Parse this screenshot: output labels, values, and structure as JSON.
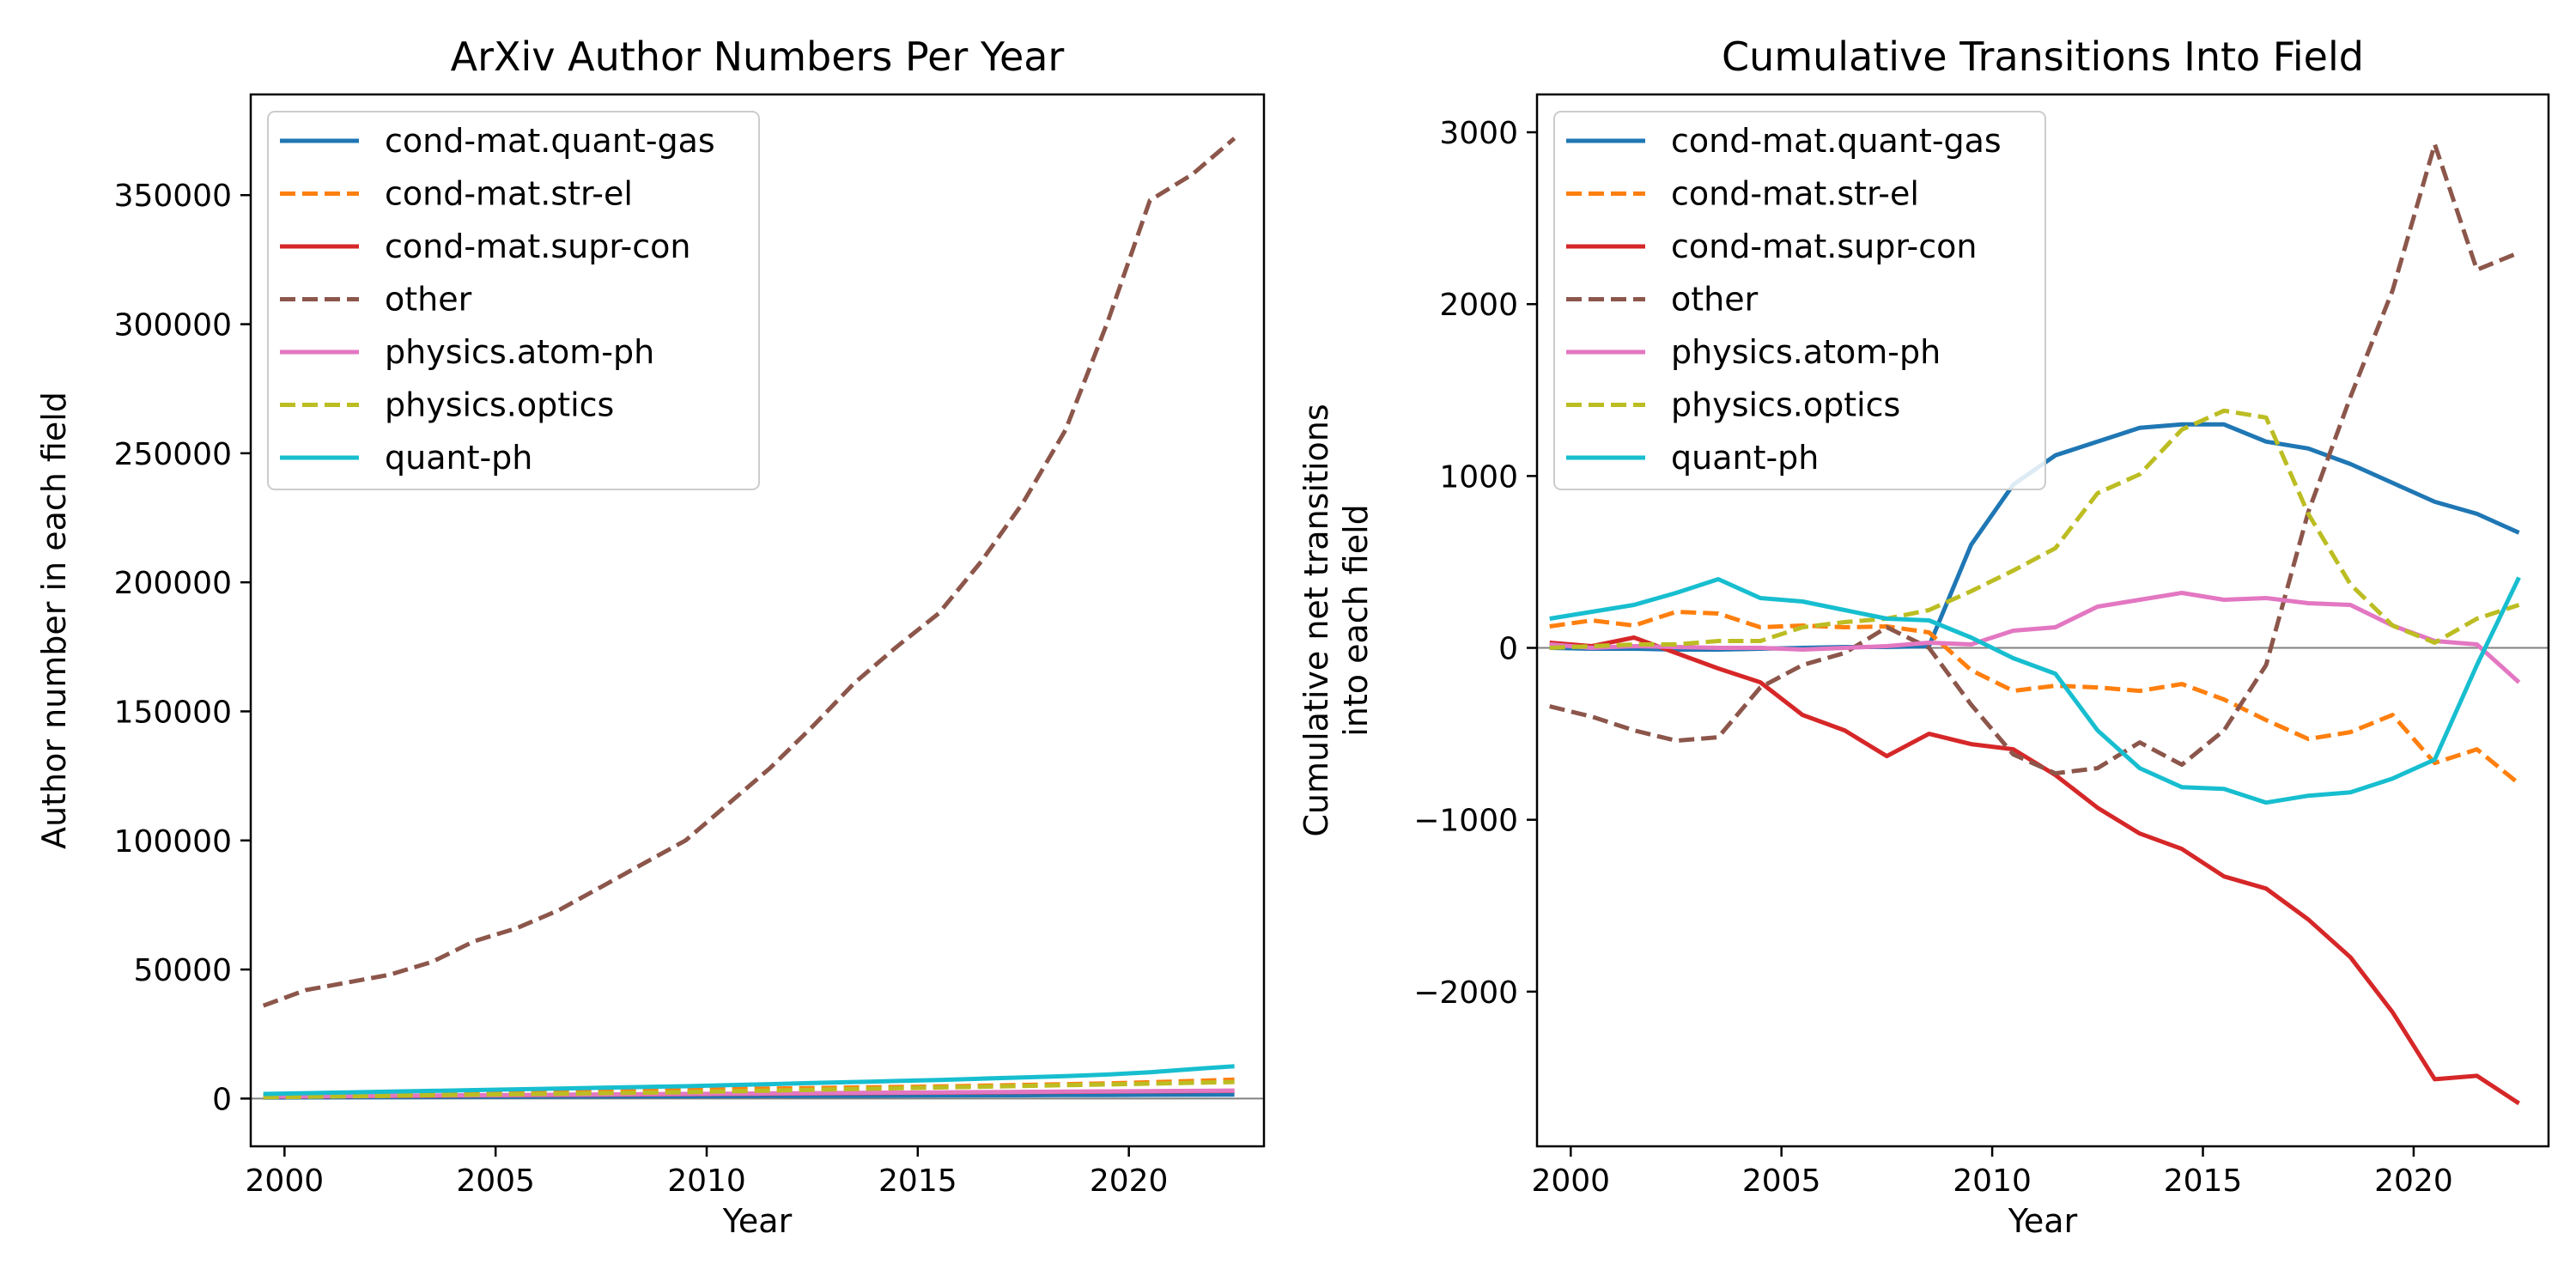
{
  "figure": {
    "background": "#ffffff"
  },
  "legend_entries": [
    {
      "name": "cond-mat.quant-gas",
      "color": "#1f77b4",
      "dash": "solid"
    },
    {
      "name": "cond-mat.str-el",
      "color": "#ff7f0e",
      "dash": "dashed"
    },
    {
      "name": "cond-mat.supr-con",
      "color": "#d62728",
      "dash": "solid"
    },
    {
      "name": "other",
      "color": "#8c564b",
      "dash": "dashed"
    },
    {
      "name": "physics.atom-ph",
      "color": "#e377c2",
      "dash": "solid"
    },
    {
      "name": "physics.optics",
      "color": "#bcbd22",
      "dash": "dashed"
    },
    {
      "name": "quant-ph",
      "color": "#17becf",
      "dash": "solid"
    }
  ],
  "chart_data": [
    {
      "type": "line",
      "title": "ArXiv Author Numbers Per Year",
      "xlabel": "Year",
      "ylabel": "Author number in each field",
      "xlim": [
        1999.2,
        2023.2
      ],
      "ylim": [
        -18500,
        389000
      ],
      "xticks": [
        2000,
        2005,
        2010,
        2015,
        2020
      ],
      "yticks": [
        0,
        50000,
        100000,
        150000,
        200000,
        250000,
        300000,
        350000
      ],
      "xtick_labels": [
        "2000",
        "2005",
        "2010",
        "2015",
        "2020"
      ],
      "ytick_labels": [
        "0",
        "50000",
        "100000",
        "150000",
        "200000",
        "250000",
        "300000",
        "350000"
      ],
      "zero_line": true,
      "legend": "top-left",
      "grid": false,
      "x": [
        1999.5,
        2000.5,
        2001.5,
        2002.5,
        2003.5,
        2004.5,
        2005.5,
        2006.5,
        2007.5,
        2008.5,
        2009.5,
        2010.5,
        2011.5,
        2012.5,
        2013.5,
        2014.5,
        2015.5,
        2016.5,
        2017.5,
        2018.5,
        2019.5,
        2020.5,
        2021.5,
        2022.5
      ],
      "series": [
        {
          "name": "cond-mat.quant-gas",
          "values": [
            400,
            450,
            500,
            550,
            600,
            650,
            700,
            750,
            800,
            850,
            900,
            950,
            1000,
            1050,
            1100,
            1150,
            1200,
            1250,
            1300,
            1350,
            1400,
            1450,
            1500,
            1550
          ]
        },
        {
          "name": "cond-mat.str-el",
          "values": [
            1500,
            1700,
            1900,
            2100,
            2300,
            2500,
            2700,
            2900,
            3100,
            3300,
            3500,
            3700,
            3900,
            4100,
            4300,
            4500,
            4700,
            5000,
            5300,
            5600,
            5900,
            6300,
            6800,
            7300
          ]
        },
        {
          "name": "cond-mat.supr-con",
          "values": [
            700,
            800,
            900,
            1000,
            1100,
            1200,
            1300,
            1400,
            1500,
            1600,
            1700,
            1800,
            1900,
            2000,
            2100,
            2200,
            2300,
            2400,
            2500,
            2600,
            2700,
            2800,
            2900,
            3000
          ]
        },
        {
          "name": "other",
          "values": [
            36000,
            42000,
            45000,
            48000,
            53000,
            61000,
            66000,
            73000,
            82000,
            91000,
            100000,
            114000,
            128000,
            144000,
            161000,
            175000,
            188000,
            208000,
            231000,
            259000,
            301000,
            348000,
            358000,
            372000
          ]
        },
        {
          "name": "physics.atom-ph",
          "values": [
            800,
            900,
            1000,
            1100,
            1200,
            1300,
            1400,
            1500,
            1600,
            1700,
            1800,
            1900,
            2000,
            2100,
            2200,
            2300,
            2400,
            2500,
            2600,
            2700,
            2800,
            2900,
            3000,
            3100
          ]
        },
        {
          "name": "physics.optics",
          "values": [
            500,
            700,
            900,
            1100,
            1300,
            1500,
            1700,
            1900,
            2100,
            2300,
            2500,
            2800,
            3100,
            3400,
            3700,
            4000,
            4300,
            4600,
            4900,
            5200,
            5500,
            5800,
            6100,
            6400
          ]
        },
        {
          "name": "quant-ph",
          "values": [
            1800,
            2100,
            2400,
            2700,
            3000,
            3300,
            3600,
            3900,
            4200,
            4500,
            4800,
            5200,
            5600,
            6000,
            6400,
            6800,
            7200,
            7700,
            8200,
            8700,
            9300,
            10200,
            11400,
            12500
          ]
        }
      ]
    },
    {
      "type": "line",
      "title": "Cumulative Transitions Into Field",
      "xlabel": "Year",
      "ylabel": "Cumulative net transitions\ninto each field",
      "xlim": [
        1999.2,
        2023.2
      ],
      "ylim": [
        -2900,
        3220
      ],
      "xticks": [
        2000,
        2005,
        2010,
        2015,
        2020
      ],
      "yticks": [
        -2000,
        -1000,
        0,
        1000,
        2000,
        3000
      ],
      "xtick_labels": [
        "2000",
        "2005",
        "2010",
        "2015",
        "2020"
      ],
      "ytick_labels": [
        "−2000",
        "−1000",
        "0",
        "1000",
        "2000",
        "3000"
      ],
      "zero_line": true,
      "legend": "top-left",
      "grid": false,
      "x": [
        1999.5,
        2000.5,
        2001.5,
        2002.5,
        2003.5,
        2004.5,
        2005.5,
        2006.5,
        2007.5,
        2008.5,
        2009.5,
        2010.5,
        2011.5,
        2012.5,
        2013.5,
        2014.5,
        2015.5,
        2016.5,
        2017.5,
        2018.5,
        2019.5,
        2020.5,
        2021.5,
        2022.5
      ],
      "series": [
        {
          "name": "cond-mat.quant-gas",
          "values": [
            0,
            -5,
            -5,
            -10,
            -10,
            -5,
            0,
            5,
            5,
            10,
            600,
            950,
            1120,
            1200,
            1280,
            1300,
            1300,
            1200,
            1160,
            1070,
            960,
            850,
            780,
            670
          ]
        },
        {
          "name": "cond-mat.str-el",
          "values": [
            125,
            160,
            130,
            210,
            200,
            120,
            130,
            120,
            125,
            90,
            -130,
            -250,
            -220,
            -230,
            -250,
            -210,
            -300,
            -420,
            -530,
            -490,
            -390,
            -670,
            -590,
            -790
          ]
        },
        {
          "name": "cond-mat.supr-con",
          "values": [
            30,
            10,
            60,
            -30,
            -120,
            -200,
            -390,
            -480,
            -630,
            -500,
            -560,
            -590,
            -740,
            -930,
            -1080,
            -1170,
            -1330,
            -1400,
            -1580,
            -1800,
            -2120,
            -2510,
            -2490,
            -2650
          ]
        },
        {
          "name": "other",
          "values": [
            -340,
            -400,
            -480,
            -540,
            -520,
            -230,
            -100,
            -30,
            120,
            0,
            -330,
            -620,
            -730,
            -700,
            -550,
            -680,
            -480,
            -100,
            790,
            1460,
            2080,
            2930,
            2200,
            2300
          ]
        },
        {
          "name": "physics.atom-ph",
          "values": [
            20,
            0,
            10,
            5,
            0,
            0,
            -10,
            0,
            10,
            30,
            20,
            100,
            120,
            240,
            280,
            320,
            280,
            290,
            260,
            250,
            130,
            40,
            20,
            -200
          ]
        },
        {
          "name": "physics.optics",
          "values": [
            0,
            10,
            20,
            20,
            40,
            40,
            120,
            150,
            170,
            220,
            330,
            450,
            580,
            900,
            1010,
            1270,
            1380,
            1340,
            780,
            370,
            130,
            30,
            170,
            250
          ]
        },
        {
          "name": "quant-ph",
          "values": [
            170,
            210,
            250,
            320,
            400,
            290,
            270,
            220,
            170,
            160,
            60,
            -60,
            -150,
            -480,
            -700,
            -810,
            -820,
            -900,
            -860,
            -840,
            -760,
            -650,
            -100,
            410
          ]
        }
      ]
    }
  ]
}
